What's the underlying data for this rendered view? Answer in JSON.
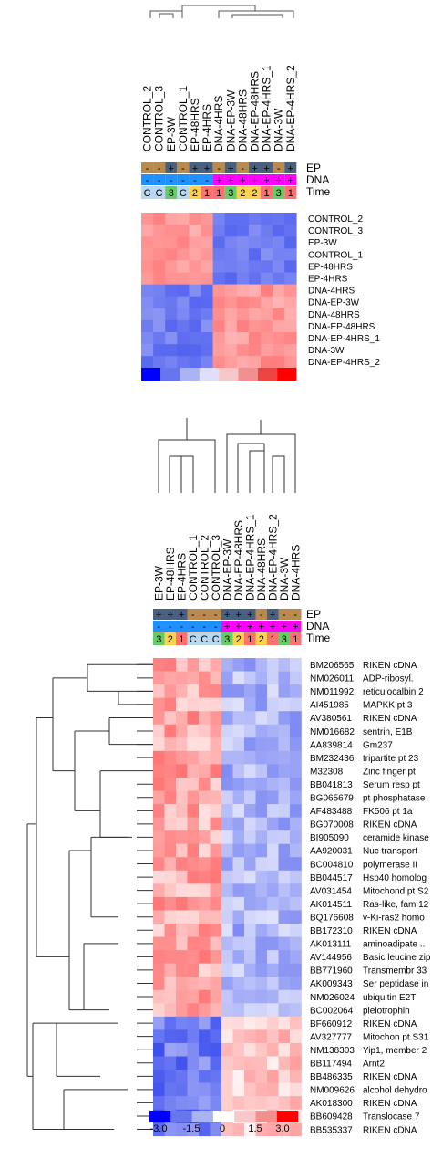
{
  "chart_data": [
    {
      "type": "heatmap",
      "title": "",
      "columns": [
        "CONTROL_2",
        "CONTROL_3",
        "EP-3W",
        "CONTROL_1",
        "EP-48HRS",
        "EP-4HRS",
        "DNA-4HRS",
        "DNA-EP-3W",
        "DNA-48HRS",
        "DNA-EP-48HRS",
        "DNA-EP-4HRS_1",
        "DNA-3W",
        "DNA-EP-4HRS_2"
      ],
      "rows": [
        "CONTROL_2",
        "CONTROL_3",
        "EP-3W",
        "CONTROL_1",
        "EP-48HRS",
        "EP-4HRS",
        "DNA-4HRS",
        "DNA-EP-3W",
        "DNA-48HRS",
        "DNA-EP-48HRS",
        "DNA-EP-4HRS_1",
        "DNA-3W",
        "DNA-EP-4HRS_2"
      ],
      "annotation_labels": [
        "EP",
        "DNA",
        "Time"
      ],
      "annotations": {
        "EP": [
          "-",
          "-",
          "+",
          "-",
          "+",
          "+",
          "-",
          "+",
          "-",
          "+",
          "+",
          "-",
          "+"
        ],
        "DNA": [
          "-",
          "-",
          "-",
          "-",
          "-",
          "-",
          "+",
          "+",
          "+",
          "+",
          "+",
          "+",
          "+"
        ],
        "Time": [
          "C",
          "C",
          "3",
          "C",
          "2",
          "1",
          "1",
          "3",
          "2",
          "2",
          "1",
          "3",
          "1"
        ]
      },
      "groups": [
        6,
        7
      ],
      "legend_colors": [
        "#0000ff",
        "#6677ee",
        "#aab4f2",
        "#dde0f8",
        "#f6c8c8",
        "#f29090",
        "#ee4444",
        "#ff0000"
      ]
    },
    {
      "type": "heatmap",
      "title": "",
      "columns": [
        "EP-3W",
        "EP-48HRS",
        "EP-4HRS",
        "CONTROL_1",
        "CONTROL_2",
        "CONTROL_3",
        "DNA-EP-3W",
        "DNA-EP-48HRS",
        "DNA-EP-4HRS_1",
        "DNA-48HRS",
        "DNA-EP-4HRS_2",
        "DNA-3W",
        "DNA-4HRS"
      ],
      "annotation_labels": [
        "EP",
        "DNA",
        "Time"
      ],
      "annotations": {
        "EP": [
          "+",
          "+",
          "+",
          "-",
          "-",
          "-",
          "+",
          "+",
          "+",
          "-",
          "+",
          "-",
          "-"
        ],
        "DNA": [
          "-",
          "-",
          "-",
          "-",
          "-",
          "-",
          "+",
          "+",
          "+",
          "+",
          "+",
          "+",
          "+"
        ],
        "Time": [
          "3",
          "2",
          "1",
          "C",
          "C",
          "C",
          "3",
          "2",
          "1",
          "2",
          "1",
          "3",
          "1"
        ]
      },
      "rows": [
        {
          "id": "BM206565",
          "name": "RIKEN cDNA"
        },
        {
          "id": "NM026011",
          "name": "ADP-ribosyl."
        },
        {
          "id": "NM011992",
          "name": "reticulocalbin 2"
        },
        {
          "id": "AI451985",
          "name": "MAPKK pt 3"
        },
        {
          "id": "AV380561",
          "name": "RIKEN cDNA"
        },
        {
          "id": "NM016682",
          "name": "sentrin, E1B"
        },
        {
          "id": "AA839814",
          "name": "Gm237"
        },
        {
          "id": "BM232436",
          "name": "tripartite pt 23"
        },
        {
          "id": "M32308",
          "name": "Zinc finger pt"
        },
        {
          "id": "BB041813",
          "name": "Serum resp pt"
        },
        {
          "id": "BG065679",
          "name": "pt phosphatase"
        },
        {
          "id": "AF483488",
          "name": "FK506 pt 1a"
        },
        {
          "id": "BG070008",
          "name": "RIKEN cDNA"
        },
        {
          "id": "BI905090",
          "name": "ceramide kinase"
        },
        {
          "id": "AA920031",
          "name": "Nuc transport"
        },
        {
          "id": "BC004810",
          "name": "polymerase II"
        },
        {
          "id": "BB044517",
          "name": "Hsp40 homolog"
        },
        {
          "id": "AV031454",
          "name": "Mitochond pt S2"
        },
        {
          "id": "AK014511",
          "name": "Ras-like, fam 12"
        },
        {
          "id": "BQ176608",
          "name": "v-Ki-ras2 homo"
        },
        {
          "id": "BB172310",
          "name": "RIKEN cDNA"
        },
        {
          "id": "AK013111",
          "name": "aminoadipate .."
        },
        {
          "id": "AV144956",
          "name": "Basic leucine zip"
        },
        {
          "id": "BB771960",
          "name": "Transmembr 33"
        },
        {
          "id": "AK009343",
          "name": "Ser peptidase in"
        },
        {
          "id": "NM026024",
          "name": "ubiquitin E2T"
        },
        {
          "id": "BC002064",
          "name": "pleiotrophin"
        },
        {
          "id": "BF660912",
          "name": "RIKEN cDNA"
        },
        {
          "id": "AV327777",
          "name": "Mitochon pt S31"
        },
        {
          "id": "NM138303",
          "name": "Yip1, member 2"
        },
        {
          "id": "BB117494",
          "name": "Arnt2"
        },
        {
          "id": "BB486335",
          "name": "RIKEN cDNA"
        },
        {
          "id": "NM009626",
          "name": "alcohol dehydro"
        },
        {
          "id": "AK018300",
          "name": "RIKEN cDNA"
        },
        {
          "id": "BB609428",
          "name": "Translocase 7"
        },
        {
          "id": "BB535337",
          "name": "RIKEN cDNA"
        }
      ],
      "up_in_control_rows": 27,
      "legend_tick_labels": [
        "-3.0",
        "-1.5",
        "0",
        "1.5",
        "3.0"
      ],
      "legend_colors": [
        "#0000ff",
        "#6677ee",
        "#aab4f2",
        "#ffffff",
        "#f6c8c8",
        "#f29090",
        "#ff0000"
      ]
    }
  ],
  "colors": {
    "ep_plus": "#4a6080",
    "ep_minus": "#b88a50",
    "dna_plus": "#ff00ff",
    "dna_minus": "#1e90ff",
    "time_C": "#b8d8f0",
    "time_1": "#ff7070",
    "time_2": "#ffd24d",
    "time_3": "#66cc66"
  }
}
